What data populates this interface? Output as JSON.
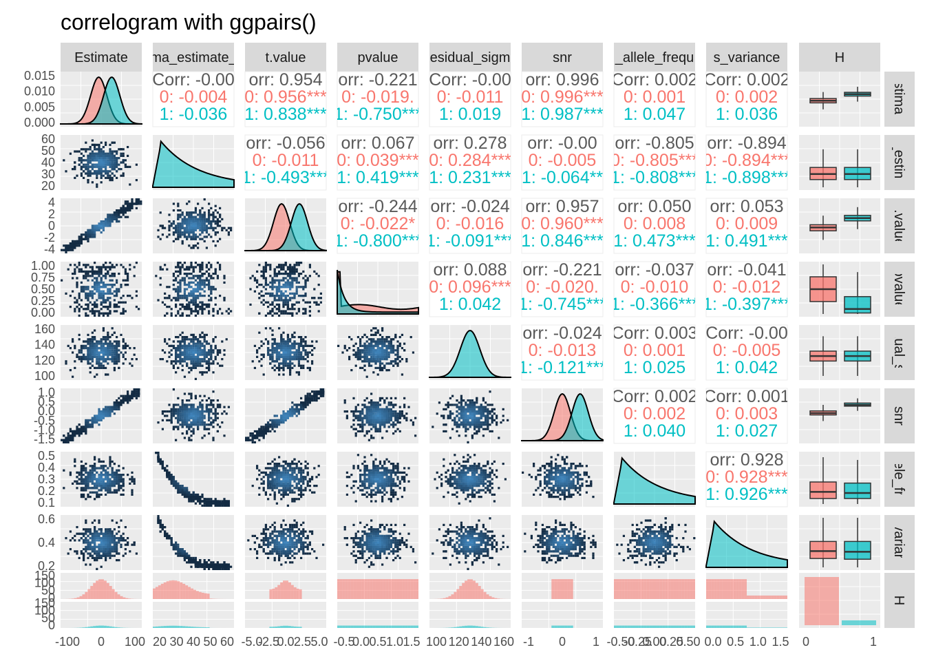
{
  "title": "correlogram with ggpairs()",
  "colors": {
    "group0": "#F8766D",
    "group1": "#00BFC4",
    "hexLow": "#132B43",
    "hexHigh": "#56B1F7",
    "panel": "#EBEBEB",
    "strip": "#D9D9D9",
    "corrOverall": "#595959"
  },
  "variables": [
    "Estimate",
    "sigma_estimate_",
    "t.value",
    "pvalue",
    "residual_sigma",
    "snr",
    "minor_allele_frequency",
    "fraction_variance",
    "H"
  ],
  "column_strips": [
    "Estimate",
    "ma_estimate_",
    "t.value",
    "pvalue",
    "esidual_sigm",
    "snr",
    "_allele_frequ",
    "s_variance",
    "H"
  ],
  "row_strips": [
    "Estimate",
    "a_estima",
    "t.value",
    "pvalue",
    "dual_si",
    "snr",
    "llele_fre",
    "_varianc",
    "H"
  ],
  "y_ticks": [
    [
      "0.000",
      "0.005",
      "0.010",
      "0.015"
    ],
    [
      "20",
      "30",
      "40",
      "50",
      "60"
    ],
    [
      "-4",
      "-2",
      "0",
      "2",
      "4"
    ],
    [
      "0.00",
      "0.25",
      "0.50",
      "0.75",
      "1.00"
    ],
    [
      "100",
      "120",
      "140",
      "160"
    ],
    [
      "-1.5",
      "-1.0",
      "-0.5",
      "0.0",
      "0.5",
      "1.0"
    ],
    [
      "0.1",
      "0.2",
      "0.3",
      "0.4",
      "0.5"
    ],
    [
      "0.2",
      "0.4",
      "0.6"
    ],
    [
      "0",
      "50",
      "100",
      "150",
      "0",
      "50",
      "100",
      "150"
    ]
  ],
  "x_ticks": [
    [
      "-100",
      "0",
      "100"
    ],
    [
      "20",
      "30",
      "40",
      "50",
      "60"
    ],
    [
      "-5.0",
      "-2.5",
      "0.0",
      "2.5",
      "5.0"
    ],
    [
      "-0.5",
      "0.0",
      "0.5",
      "1.0",
      "1.5"
    ],
    [
      "100",
      "120",
      "140",
      "160"
    ],
    [
      "-1",
      "0",
      "1"
    ],
    [
      "-0.50",
      "-0.25",
      "0.00",
      "0.25",
      "0.50"
    ],
    [
      "0.0",
      "0.5",
      "1.0",
      "1.5"
    ],
    [
      "0",
      "1"
    ]
  ],
  "chart_data": {
    "type": "scatter",
    "subtype": "pairs matrix",
    "groups": [
      "0",
      "1"
    ],
    "correlations": [
      {
        "row": 0,
        "col": 1,
        "overall": "Corr: -0.00",
        "g0": "0: -0.004",
        "g1": "1: -0.036"
      },
      {
        "row": 0,
        "col": 2,
        "overall": "orr: 0.954",
        "g0": "0: 0.956***",
        "g1": "1: 0.838***"
      },
      {
        "row": 0,
        "col": 3,
        "overall": "orr: -0.221",
        "g0": "0: -0.019.",
        "g1": "1: -0.750***"
      },
      {
        "row": 0,
        "col": 4,
        "overall": "Corr: -0.00",
        "g0": "0: -0.011",
        "g1": "1: 0.019"
      },
      {
        "row": 0,
        "col": 5,
        "overall": "orr: 0.996",
        "g0": "0: 0.996***",
        "g1": "1: 0.987***"
      },
      {
        "row": 0,
        "col": 6,
        "overall": "Corr: 0.002",
        "g0": "0: 0.001",
        "g1": "1: 0.047"
      },
      {
        "row": 0,
        "col": 7,
        "overall": "Corr: 0.002",
        "g0": "0: 0.002",
        "g1": "1: 0.036"
      },
      {
        "row": 1,
        "col": 2,
        "overall": "orr: -0.056",
        "g0": "0: -0.011",
        "g1": "1: -0.493***"
      },
      {
        "row": 1,
        "col": 3,
        "overall": "orr: 0.067",
        "g0": "0: 0.039***",
        "g1": "1: 0.419***"
      },
      {
        "row": 1,
        "col": 4,
        "overall": "orr: 0.278",
        "g0": "0: 0.284***",
        "g1": "1: 0.231***"
      },
      {
        "row": 1,
        "col": 5,
        "overall": "orr: -0.00",
        "g0": "0: -0.005",
        "g1": "1: -0.064**"
      },
      {
        "row": 1,
        "col": 6,
        "overall": "orr: -0.805",
        "g0": "0: -0.805***",
        "g1": "1: -0.808***"
      },
      {
        "row": 1,
        "col": 7,
        "overall": "orr: -0.894",
        "g0": "0: -0.894***",
        "g1": "1: -0.898***"
      },
      {
        "row": 2,
        "col": 3,
        "overall": "orr: -0.244",
        "g0": "0: -0.022*",
        "g1": "1: -0.800***"
      },
      {
        "row": 2,
        "col": 4,
        "overall": "orr: -0.024",
        "g0": "0: -0.016",
        "g1": "1: -0.091***"
      },
      {
        "row": 2,
        "col": 5,
        "overall": "orr: 0.957",
        "g0": "0: 0.960***",
        "g1": "1: 0.846***"
      },
      {
        "row": 2,
        "col": 6,
        "overall": "orr: 0.050",
        "g0": "0: 0.008",
        "g1": "1: 0.473***"
      },
      {
        "row": 2,
        "col": 7,
        "overall": "orr: 0.053",
        "g0": "0: 0.009",
        "g1": "1: 0.491***"
      },
      {
        "row": 3,
        "col": 4,
        "overall": "orr: 0.088",
        "g0": "0: 0.096***",
        "g1": "1: 0.042"
      },
      {
        "row": 3,
        "col": 5,
        "overall": "orr: -0.221",
        "g0": "0: -0.020.",
        "g1": "1: -0.745***"
      },
      {
        "row": 3,
        "col": 6,
        "overall": "orr: -0.037",
        "g0": "0: -0.010",
        "g1": "1: -0.366***"
      },
      {
        "row": 3,
        "col": 7,
        "overall": "orr: -0.041",
        "g0": "0: -0.012",
        "g1": "1: -0.397***"
      },
      {
        "row": 4,
        "col": 5,
        "overall": "orr: -0.024",
        "g0": "0: -0.013",
        "g1": "1: -0.121***"
      },
      {
        "row": 4,
        "col": 6,
        "overall": "Corr: 0.003",
        "g0": "0: 0.001",
        "g1": "1: 0.025"
      },
      {
        "row": 4,
        "col": 7,
        "overall": "Corr: -0.00",
        "g0": "0: -0.005",
        "g1": "1: 0.042"
      },
      {
        "row": 5,
        "col": 6,
        "overall": "Corr: 0.002",
        "g0": "0: 0.002",
        "g1": "1: 0.040"
      },
      {
        "row": 5,
        "col": 7,
        "overall": "Corr: 0.001",
        "g0": "0: 0.003",
        "g1": "1: 0.027"
      },
      {
        "row": 6,
        "col": 7,
        "overall": "orr: 0.928",
        "g0": "0: 0.928***",
        "g1": "1: 0.926***"
      }
    ],
    "densities": [
      {
        "var": "Estimate",
        "g0": {
          "mean": 0.0085,
          "sd": 0.0022
        },
        "g1": {
          "mean": 0.0118,
          "sd": 0.0022
        },
        "range": [
          -0.001,
          0.016
        ]
      },
      {
        "var": "sigma_estimate_",
        "overlap": true
      },
      {
        "var": "t.value",
        "g0": {
          "mean": 0.2,
          "sd": 1.1
        },
        "g1": {
          "mean": 2.0,
          "sd": 1.1
        },
        "range": [
          -4,
          5
        ]
      },
      {
        "var": "pvalue",
        "skewed": true
      },
      {
        "var": "residual_sigma",
        "mean": 120,
        "sd": 10
      },
      {
        "var": "snr",
        "g0": {
          "mean": 0.0,
          "sd": 0.32
        },
        "g1": {
          "mean": 0.45,
          "sd": 0.25
        }
      },
      {
        "var": "minor_allele_frequency",
        "decreasing": true
      },
      {
        "var": "fraction_variance",
        "decreasing": true
      }
    ],
    "boxplots": [
      {
        "var": "Estimate",
        "g0": {
          "q1": 0.0068,
          "med": 0.0075,
          "q3": 0.0082
        },
        "g1": {
          "q1": 0.009,
          "med": 0.0096,
          "q3": 0.0102
        }
      },
      {
        "var": "sigma_estimate_",
        "g0": {
          "q1": 22,
          "med": 27,
          "q3": 33
        },
        "g1": {
          "q1": 22,
          "med": 27,
          "q3": 33
        }
      },
      {
        "var": "t.value",
        "g0": {
          "q1": -0.4,
          "med": 0.2,
          "q3": 0.7
        },
        "g1": {
          "q1": 1.4,
          "med": 1.9,
          "q3": 2.4
        }
      },
      {
        "var": "pvalue",
        "g0": {
          "q1": 0.25,
          "med": 0.5,
          "q3": 0.75
        },
        "g1": {
          "q1": 0.02,
          "med": 0.1,
          "q3": 0.35
        }
      },
      {
        "var": "residual_sigma",
        "g0": {
          "q1": 113,
          "med": 120,
          "q3": 127
        },
        "g1": {
          "q1": 113,
          "med": 120,
          "q3": 127
        }
      },
      {
        "var": "snr",
        "g0": {
          "q1": -0.1,
          "med": 0.0,
          "q3": 0.12
        },
        "g1": {
          "q1": 0.38,
          "med": 0.45,
          "q3": 0.55
        }
      },
      {
        "var": "minor_allele_frequency",
        "g0": {
          "q1": 0.1,
          "med": 0.16,
          "q3": 0.25
        },
        "g1": {
          "q1": 0.1,
          "med": 0.15,
          "q3": 0.24
        }
      },
      {
        "var": "fraction_variance",
        "g0": {
          "q1": 0.17,
          "med": 0.27,
          "q3": 0.4
        },
        "g1": {
          "q1": 0.16,
          "med": 0.26,
          "q3": 0.4
        }
      }
    ],
    "H_counts": {
      "0": 1,
      "1": 0.1
    }
  }
}
